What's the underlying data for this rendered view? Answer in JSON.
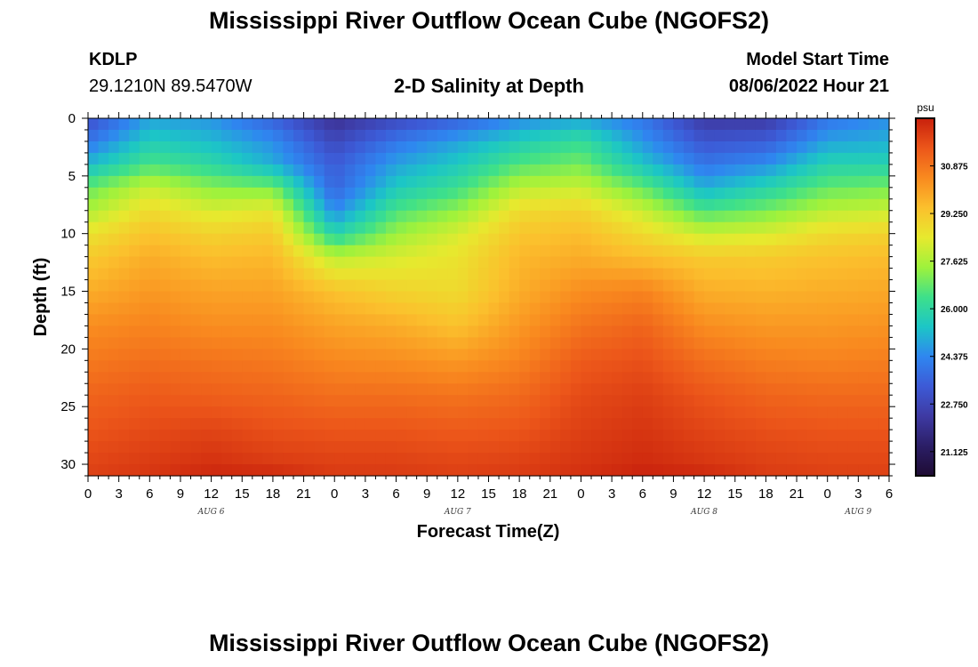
{
  "header": {
    "title": "Mississippi River Outflow Ocean Cube (NGOFS2)",
    "station_id": "KDLP",
    "station_coords": "29.1210N  89.5470W",
    "subtitle": "2-D Salinity at Depth",
    "model_start_label": "Model Start Time",
    "model_start_value": "08/06/2022 Hour 21"
  },
  "footer": {
    "title": "Mississippi River Outflow Ocean Cube (NGOFS2)"
  },
  "chart_data": {
    "type": "heatmap",
    "title": "2-D Salinity at Depth",
    "xlabel": "Forecast Time(Z)",
    "ylabel": "Depth (ft)",
    "x_tick_labels": [
      "0",
      "3",
      "6",
      "9",
      "12",
      "15",
      "18",
      "21",
      "0",
      "3",
      "6",
      "9",
      "12",
      "15",
      "18",
      "21",
      "0",
      "3",
      "6",
      "9",
      "12",
      "15",
      "18",
      "21",
      "0",
      "3",
      "6"
    ],
    "x_day_labels": [
      {
        "label": "AUG 6",
        "hours_from_start": 12
      },
      {
        "label": "AUG 7",
        "hours_from_start": 36
      },
      {
        "label": "AUG 8",
        "hours_from_start": 60
      },
      {
        "label": "AUG 9",
        "hours_from_start": 75
      }
    ],
    "x_range_hours": [
      0,
      78
    ],
    "y_ticks": [
      0,
      5,
      10,
      15,
      20,
      25,
      30
    ],
    "y_range_ft": [
      0,
      31
    ],
    "y_reversed": true,
    "colorbar": {
      "unit": "psu",
      "ticks": [
        "30.875",
        "29.250",
        "27.625",
        "26.000",
        "24.375",
        "22.750",
        "21.125"
      ],
      "range": [
        20.3,
        32.5
      ],
      "colors": [
        "#1e0b33",
        "#2b1e66",
        "#3e3aa3",
        "#3d5ad6",
        "#2f86f0",
        "#1cc6c6",
        "#3ee08a",
        "#9ef23c",
        "#e7e92e",
        "#fbc02d",
        "#f98a1f",
        "#ec561a",
        "#c8200c"
      ]
    },
    "profile_hours": [
      0,
      6,
      12,
      18,
      24,
      30,
      36,
      42,
      48,
      54,
      60,
      66,
      72,
      78
    ],
    "profile_depths_ft": [
      0,
      2,
      4,
      6,
      8,
      10,
      12,
      15,
      18,
      21,
      24,
      27,
      30,
      31
    ],
    "salinity_psu": [
      [
        23.0,
        24.8,
        24.6,
        23.5,
        22.0,
        22.8,
        23.5,
        24.4,
        24.8,
        24.0,
        22.3,
        22.3,
        24.0,
        24.5
      ],
      [
        24.0,
        25.6,
        25.2,
        24.5,
        22.8,
        24.0,
        24.8,
        25.6,
        26.2,
        24.6,
        23.2,
        23.4,
        24.8,
        25.0
      ],
      [
        25.2,
        26.5,
        26.0,
        25.0,
        23.4,
        24.8,
        25.5,
        26.6,
        27.0,
        25.4,
        24.0,
        24.5,
        25.8,
        25.8
      ],
      [
        26.8,
        28.0,
        27.2,
        27.0,
        23.6,
        25.5,
        26.3,
        27.8,
        28.0,
        26.8,
        25.0,
        25.8,
        26.8,
        27.0
      ],
      [
        27.6,
        28.8,
        28.2,
        28.5,
        24.4,
        26.5,
        27.3,
        28.8,
        29.0,
        28.0,
        26.5,
        27.0,
        27.8,
        28.0
      ],
      [
        28.6,
        29.4,
        29.0,
        29.2,
        25.8,
        27.4,
        28.2,
        29.3,
        29.5,
        28.8,
        28.0,
        28.2,
        28.8,
        29.0
      ],
      [
        29.2,
        29.8,
        29.5,
        29.6,
        27.8,
        28.2,
        28.6,
        29.6,
        29.8,
        29.5,
        29.2,
        29.2,
        29.4,
        29.5
      ],
      [
        29.8,
        30.2,
        30.0,
        30.0,
        29.4,
        29.0,
        28.8,
        29.8,
        30.4,
        30.6,
        29.8,
        29.7,
        29.8,
        29.9
      ],
      [
        30.4,
        30.6,
        30.4,
        30.4,
        30.0,
        29.8,
        29.4,
        30.2,
        30.9,
        31.2,
        30.4,
        30.2,
        30.2,
        30.3
      ],
      [
        30.8,
        31.0,
        30.9,
        30.8,
        30.5,
        30.4,
        30.2,
        30.6,
        31.4,
        31.6,
        31.0,
        30.7,
        30.6,
        30.7
      ],
      [
        31.2,
        31.4,
        31.3,
        31.2,
        31.0,
        31.0,
        30.9,
        31.1,
        31.7,
        31.9,
        31.5,
        31.2,
        31.1,
        31.1
      ],
      [
        31.5,
        31.7,
        31.8,
        31.6,
        31.5,
        31.5,
        31.4,
        31.5,
        31.9,
        32.1,
        31.8,
        31.6,
        31.5,
        31.5
      ],
      [
        31.8,
        32.0,
        32.2,
        32.0,
        31.9,
        31.9,
        31.8,
        31.9,
        32.1,
        32.3,
        32.1,
        31.9,
        31.8,
        31.8
      ],
      [
        31.9,
        32.1,
        32.4,
        32.4,
        32.0,
        32.0,
        31.9,
        32.0,
        32.2,
        32.5,
        32.4,
        32.0,
        31.9,
        31.9
      ]
    ]
  }
}
